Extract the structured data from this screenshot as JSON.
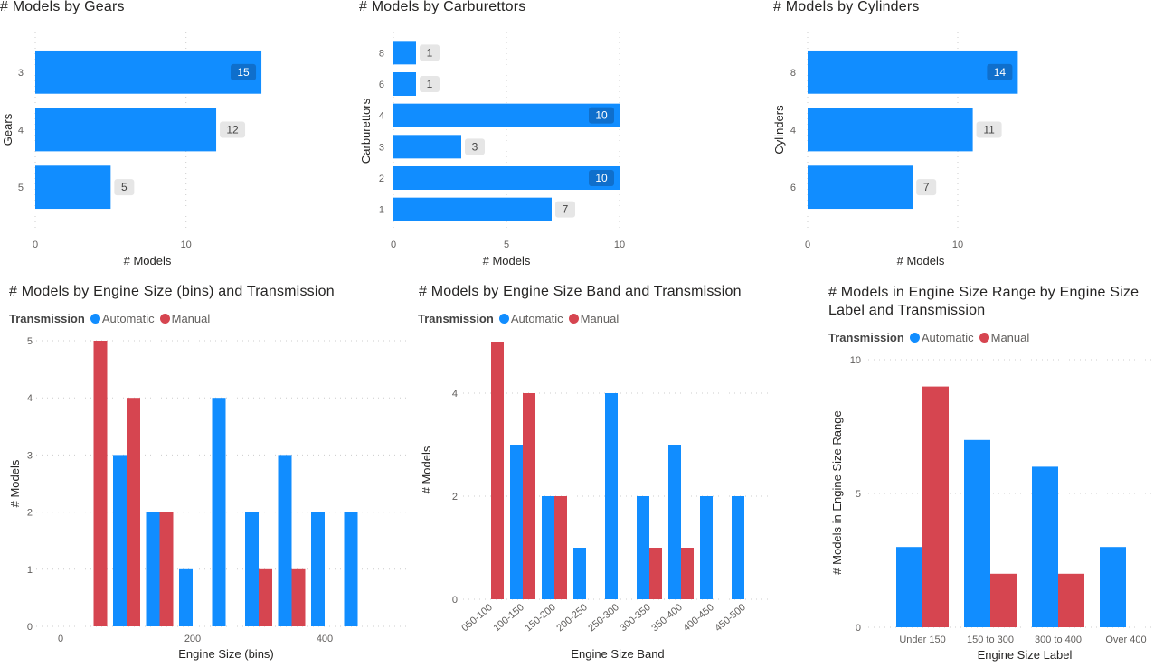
{
  "colors": {
    "automatic": "#118DFF",
    "manual": "#D64550",
    "bar": "#118DFF",
    "inside_label_bg": "#0F6FCC",
    "outside_label_bg": "#E6E6E6"
  },
  "chart_data": [
    {
      "type": "bar",
      "orientation": "horizontal",
      "title": "# Models by Gears",
      "xlabel": "# Models",
      "ylabel": "Gears",
      "categories": [
        "3",
        "4",
        "5"
      ],
      "values": [
        15,
        12,
        5
      ],
      "data_labels": [
        "15",
        "12",
        "5"
      ],
      "xticks": [
        "0",
        "10"
      ],
      "grid": true
    },
    {
      "type": "bar",
      "orientation": "horizontal",
      "title": "# Models by Carburettors",
      "xlabel": "# Models",
      "ylabel": "Carburettors",
      "categories": [
        "8",
        "6",
        "4",
        "3",
        "2",
        "1"
      ],
      "values": [
        1,
        1,
        10,
        3,
        10,
        7
      ],
      "data_labels": [
        "1",
        "1",
        "10",
        "3",
        "10",
        "7"
      ],
      "xticks": [
        "0",
        "5",
        "10"
      ],
      "grid": true
    },
    {
      "type": "bar",
      "orientation": "horizontal",
      "title": "# Models by Cylinders",
      "xlabel": "# Models",
      "ylabel": "Cylinders",
      "categories": [
        "8",
        "4",
        "6"
      ],
      "values": [
        14,
        11,
        7
      ],
      "data_labels": [
        "14",
        "11",
        "7"
      ],
      "xticks": [
        "0",
        "10"
      ],
      "grid": true
    },
    {
      "type": "bar",
      "title": "# Models by Engine Size (bins) and Transmission",
      "xlabel": "Engine Size (bins)",
      "ylabel": "# Models",
      "legend_title": "Transmission",
      "legend_position": "top-left",
      "x": [
        50,
        100,
        150,
        200,
        250,
        300,
        350,
        400,
        450
      ],
      "series": [
        {
          "name": "Automatic",
          "values": [
            0,
            3,
            2,
            1,
            4,
            2,
            3,
            2,
            2
          ]
        },
        {
          "name": "Manual",
          "values": [
            5,
            4,
            2,
            0,
            0,
            1,
            1,
            0,
            0
          ]
        }
      ],
      "xticks": [
        "0",
        "200",
        "400"
      ],
      "yticks": [
        "0",
        "1",
        "2",
        "3",
        "4",
        "5"
      ],
      "ylim": [
        0,
        5
      ],
      "grid": true
    },
    {
      "type": "bar",
      "title": "# Models by Engine Size Band and Transmission",
      "xlabel": "Engine Size Band",
      "ylabel": "# Models",
      "legend_title": "Transmission",
      "legend_position": "top-left",
      "categories": [
        "050-100",
        "100-150",
        "150-200",
        "200-250",
        "250-300",
        "300-350",
        "350-400",
        "400-450",
        "450-500"
      ],
      "series": [
        {
          "name": "Automatic",
          "values": [
            0,
            3,
            2,
            1,
            4,
            2,
            3,
            2,
            2
          ]
        },
        {
          "name": "Manual",
          "values": [
            5,
            4,
            2,
            0,
            0,
            1,
            1,
            0,
            0
          ]
        }
      ],
      "yticks": [
        "0",
        "2",
        "4"
      ],
      "grid": true
    },
    {
      "type": "bar",
      "title": "# Models in Engine Size Range by Engine Size Label and Transmission",
      "xlabel": "Engine Size Label",
      "ylabel": "# Models in Engine Size Range",
      "legend_title": "Transmission",
      "legend_position": "top-left",
      "categories": [
        "Under 150",
        "150 to 300",
        "300 to 400",
        "Over 400"
      ],
      "series": [
        {
          "name": "Automatic",
          "values": [
            3,
            7,
            6,
            3
          ]
        },
        {
          "name": "Manual",
          "values": [
            9,
            2,
            2,
            0
          ]
        }
      ],
      "yticks": [
        "0",
        "5",
        "10"
      ],
      "ylim": [
        0,
        10
      ],
      "grid": true
    }
  ]
}
